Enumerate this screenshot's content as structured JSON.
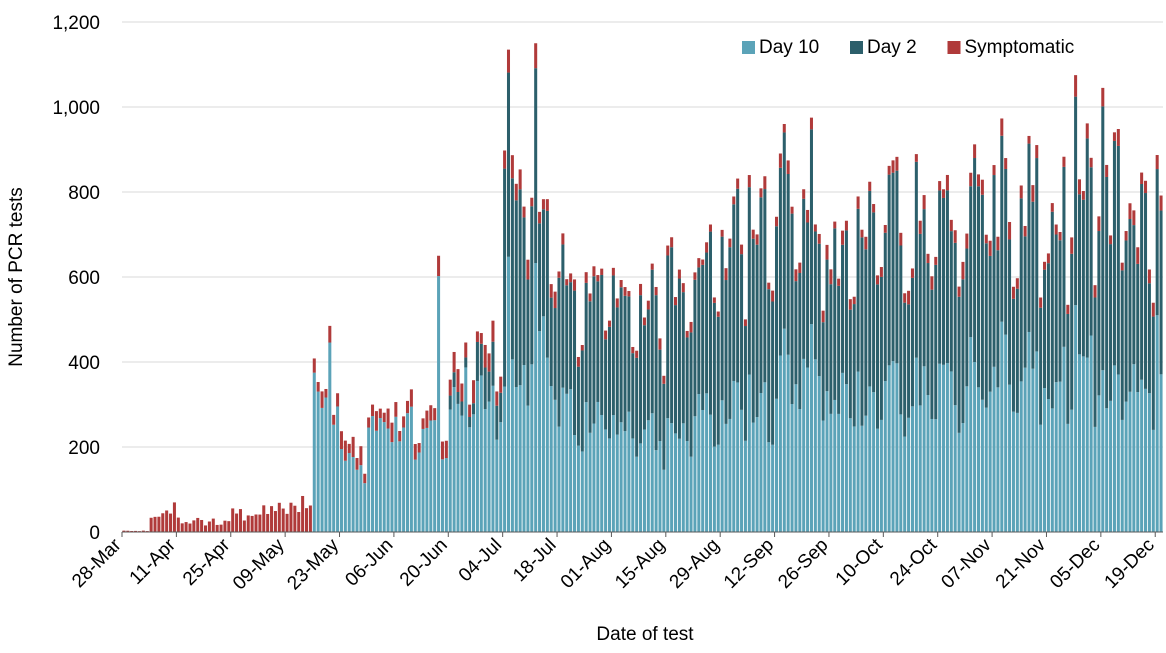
{
  "chart_data": {
    "type": "bar",
    "stacked": true,
    "title": "",
    "xlabel": "Date of test",
    "ylabel": "Number of PCR tests",
    "ylim": [
      0,
      1200
    ],
    "y_ticks": [
      "0",
      "200",
      "400",
      "600",
      "800",
      "1,000",
      "1,200"
    ],
    "x_range": [
      "28-Mar",
      "20-Dec"
    ],
    "x_tick_labels": [
      "28-Mar",
      "11-Apr",
      "25-Apr",
      "09-May",
      "23-May",
      "06-Jun",
      "20-Jun",
      "04-Jul",
      "18-Jul",
      "01-Aug",
      "15-Aug",
      "29-Aug",
      "12-Sep",
      "26-Sep",
      "10-Oct",
      "24-Oct",
      "07-Nov",
      "21-Nov",
      "05-Dec",
      "19-Dec"
    ],
    "legend_position": "top-right",
    "grid": "horizontal",
    "series": [
      {
        "name": "Day 10",
        "color": "#5ba3b8"
      },
      {
        "name": "Day 2",
        "color": "#2c5f6b"
      },
      {
        "name": "Symptomatic",
        "color": "#b03a3a"
      }
    ],
    "weekly_approx": [
      {
        "week_start": "28-Mar",
        "day10": 0,
        "day2": 0,
        "symptomatic": 3
      },
      {
        "week_start": "04-Apr",
        "day10": 0,
        "day2": 0,
        "symptomatic": 50
      },
      {
        "week_start": "11-Apr",
        "day10": 0,
        "day2": 0,
        "symptomatic": 25
      },
      {
        "week_start": "18-Apr",
        "day10": 0,
        "day2": 0,
        "symptomatic": 25
      },
      {
        "week_start": "25-Apr",
        "day10": 0,
        "day2": 0,
        "symptomatic": 40
      },
      {
        "week_start": "02-May",
        "day10": 0,
        "day2": 0,
        "symptomatic": 50
      },
      {
        "week_start": "09-May",
        "day10": 0,
        "day2": 0,
        "symptomatic": 65
      },
      {
        "week_start": "16-May",
        "day10": 350,
        "day2": 0,
        "symptomatic": 30
      },
      {
        "week_start": "23-May",
        "day10": 180,
        "day2": 0,
        "symptomatic": 35
      },
      {
        "week_start": "30-May",
        "day10": 260,
        "day2": 0,
        "symptomatic": 35
      },
      {
        "week_start": "06-Jun",
        "day10": 260,
        "day2": 0,
        "symptomatic": 30
      },
      {
        "week_start": "13-Jun",
        "day10": 260,
        "day2": 0,
        "symptomatic": 30
      },
      {
        "week_start": "20-Jun",
        "day10": 350,
        "day2": 30,
        "symptomatic": 40
      },
      {
        "week_start": "27-Jun",
        "day10": 320,
        "day2": 90,
        "symptomatic": 40
      },
      {
        "week_start": "04-Jul",
        "day10": 420,
        "day2": 430,
        "symptomatic": 40
      },
      {
        "week_start": "11-Jul",
        "day10": 480,
        "day2": 320,
        "symptomatic": 30
      },
      {
        "week_start": "18-Jul",
        "day10": 280,
        "day2": 290,
        "symptomatic": 20
      },
      {
        "week_start": "25-Jul",
        "day10": 270,
        "day2": 300,
        "symptomatic": 20
      },
      {
        "week_start": "01-Aug",
        "day10": 260,
        "day2": 300,
        "symptomatic": 20
      },
      {
        "week_start": "08-Aug",
        "day10": 230,
        "day2": 310,
        "symptomatic": 20
      },
      {
        "week_start": "15-Aug",
        "day10": 230,
        "day2": 350,
        "symptomatic": 20
      },
      {
        "week_start": "22-Aug",
        "day10": 280,
        "day2": 360,
        "symptomatic": 20
      },
      {
        "week_start": "29-Aug",
        "day10": 300,
        "day2": 380,
        "symptomatic": 25
      },
      {
        "week_start": "05-Sep",
        "day10": 310,
        "day2": 390,
        "symptomatic": 25
      },
      {
        "week_start": "12-Sep",
        "day10": 380,
        "day2": 380,
        "symptomatic": 25
      },
      {
        "week_start": "19-Sep",
        "day10": 350,
        "day2": 330,
        "symptomatic": 25
      },
      {
        "week_start": "26-Sep",
        "day10": 320,
        "day2": 360,
        "symptomatic": 25
      },
      {
        "week_start": "03-Oct",
        "day10": 320,
        "day2": 380,
        "symptomatic": 25
      },
      {
        "week_start": "10-Oct",
        "day10": 340,
        "day2": 390,
        "symptomatic": 25
      },
      {
        "week_start": "17-Oct",
        "day10": 350,
        "day2": 380,
        "symptomatic": 25
      },
      {
        "week_start": "24-Oct",
        "day10": 360,
        "day2": 400,
        "symptomatic": 30
      },
      {
        "week_start": "31-Oct",
        "day10": 380,
        "day2": 400,
        "symptomatic": 30
      },
      {
        "week_start": "07-Nov",
        "day10": 410,
        "day2": 380,
        "symptomatic": 30
      },
      {
        "week_start": "14-Nov",
        "day10": 400,
        "day2": 380,
        "symptomatic": 30
      },
      {
        "week_start": "21-Nov",
        "day10": 370,
        "day2": 400,
        "symptomatic": 30
      },
      {
        "week_start": "28-Nov",
        "day10": 380,
        "day2": 430,
        "symptomatic": 30
      },
      {
        "week_start": "05-Dec",
        "day10": 350,
        "day2": 460,
        "symptomatic": 30
      },
      {
        "week_start": "12-Dec",
        "day10": 380,
        "day2": 380,
        "symptomatic": 30
      },
      {
        "week_start": "19-Dec",
        "day10": 420,
        "day2": 350,
        "symptomatic": 30
      }
    ],
    "notable_peaks": [
      {
        "date": "20-May",
        "total": 485
      },
      {
        "date": "17-Jun",
        "total": 650
      },
      {
        "date": "05-Jul",
        "total": 1135
      },
      {
        "date": "12-Jul",
        "total": 1150
      },
      {
        "date": "14-Sep",
        "total": 960
      },
      {
        "date": "21-Sep",
        "total": 975
      },
      {
        "date": "28-Nov",
        "total": 1075
      },
      {
        "date": "05-Dec",
        "total": 1045
      }
    ]
  }
}
